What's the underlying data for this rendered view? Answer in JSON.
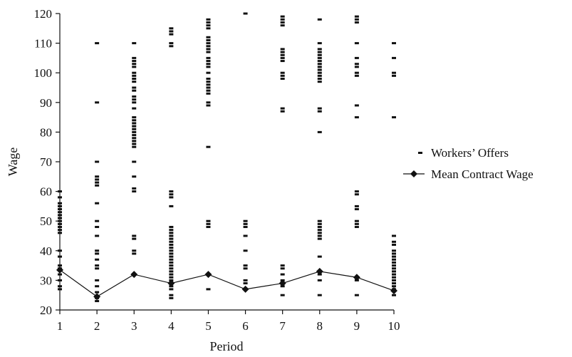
{
  "chart_data": {
    "type": "scatter",
    "title": "",
    "xlabel": "Period",
    "ylabel": "Wage",
    "xlim": [
      1,
      10
    ],
    "ylim": [
      20,
      120
    ],
    "x_ticks": [
      "1",
      "2",
      "3",
      "4",
      "5",
      "6",
      "7",
      "8",
      "9",
      "10"
    ],
    "y_ticks": [
      "20",
      "30",
      "40",
      "50",
      "60",
      "70",
      "80",
      "90",
      "100",
      "110",
      "120"
    ],
    "grid": false,
    "legend_position": "right",
    "series": [
      {
        "name": "Workers' Offers",
        "label": "Workers’ Offers",
        "marker": "dash",
        "color": "#111111",
        "points": [
          {
            "x": 1,
            "values": [
              27,
              28,
              30,
              32,
              34,
              35,
              38,
              40,
              46,
              47,
              48,
              49,
              50,
              51,
              52,
              53,
              54,
              55,
              56,
              58,
              60
            ]
          },
          {
            "x": 2,
            "values": [
              23,
              24,
              26,
              28,
              30,
              34,
              35,
              37,
              39,
              40,
              45,
              48,
              50,
              56,
              62,
              63,
              64,
              65,
              70,
              90,
              110
            ]
          },
          {
            "x": 3,
            "values": [
              39,
              40,
              44,
              45,
              60,
              61,
              65,
              70,
              75,
              76,
              77,
              78,
              79,
              80,
              81,
              82,
              83,
              84,
              85,
              88,
              90,
              91,
              92,
              94,
              95,
              97,
              98,
              99,
              100,
              102,
              103,
              104,
              105,
              110
            ]
          },
          {
            "x": 4,
            "values": [
              24,
              25,
              27,
              28,
              30,
              31,
              32,
              33,
              34,
              35,
              36,
              37,
              38,
              39,
              40,
              41,
              42,
              43,
              44,
              45,
              46,
              47,
              48,
              55,
              58,
              59,
              60,
              109,
              110,
              113,
              114,
              115
            ]
          },
          {
            "x": 5,
            "values": [
              27,
              48,
              49,
              50,
              75,
              89,
              90,
              93,
              94,
              95,
              96,
              97,
              98,
              100,
              102,
              103,
              104,
              105,
              107,
              108,
              109,
              110,
              111,
              112,
              115,
              116,
              117,
              118
            ]
          },
          {
            "x": 6,
            "values": [
              27,
              29,
              30,
              34,
              35,
              40,
              45,
              48,
              49,
              50,
              120
            ]
          },
          {
            "x": 7,
            "values": [
              25,
              28,
              30,
              32,
              34,
              35,
              87,
              88,
              98,
              99,
              100,
              104,
              105,
              106,
              107,
              108,
              116,
              117,
              118,
              119
            ]
          },
          {
            "x": 8,
            "values": [
              25,
              30,
              32,
              38,
              44,
              45,
              46,
              47,
              48,
              49,
              50,
              80,
              87,
              88,
              97,
              98,
              99,
              100,
              101,
              102,
              103,
              104,
              105,
              106,
              107,
              108,
              110,
              118
            ]
          },
          {
            "x": 9,
            "values": [
              25,
              30,
              48,
              49,
              50,
              54,
              55,
              59,
              60,
              85,
              89,
              99,
              100,
              102,
              103,
              105,
              110,
              117,
              118,
              119
            ]
          },
          {
            "x": 10,
            "values": [
              25,
              27,
              28,
              29,
              30,
              31,
              32,
              33,
              34,
              35,
              36,
              37,
              38,
              39,
              40,
              42,
              43,
              45,
              85,
              99,
              100,
              105,
              110
            ]
          }
        ]
      },
      {
        "name": "Mean Contract Wage",
        "marker": "diamond",
        "color": "#111111",
        "x": [
          1,
          2,
          3,
          4,
          5,
          6,
          7,
          8,
          9,
          10
        ],
        "values": [
          33.5,
          24.5,
          32,
          29,
          32,
          27,
          29,
          33,
          31,
          26.5
        ]
      }
    ]
  }
}
